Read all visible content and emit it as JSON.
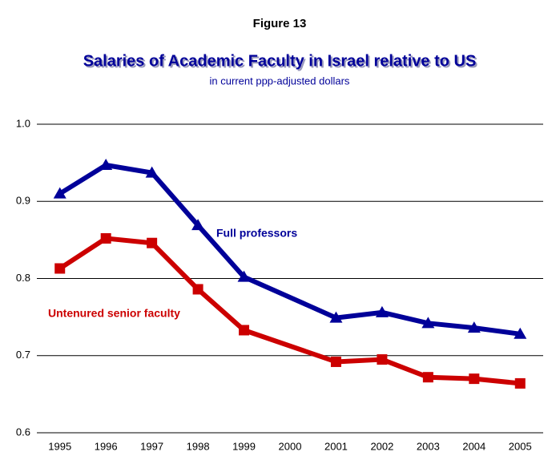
{
  "chart_data": {
    "type": "line",
    "figure_label": "Figure 13",
    "title": "Salaries of Academic Faculty in Israel relative to US",
    "subtitle": "in current ppp-adjusted dollars",
    "x": [
      1995,
      1996,
      1997,
      1998,
      1999,
      2001,
      2002,
      2003,
      2004,
      2005
    ],
    "xlim": [
      1994.5,
      2005.5
    ],
    "xticks": [
      1995,
      1996,
      1997,
      1998,
      1999,
      2000,
      2001,
      2002,
      2003,
      2004,
      2005
    ],
    "ylim": [
      0.6,
      1.0
    ],
    "yticks": [
      0.6,
      0.7,
      0.8,
      0.9,
      {
        "value": 1.0,
        "label": "1.0"
      }
    ],
    "grid": true,
    "series": [
      {
        "name": "Full professors",
        "color": "#000099",
        "marker": "triangle",
        "values": [
          0.91,
          0.947,
          0.937,
          0.869,
          0.802,
          0.749,
          0.756,
          0.742,
          0.736,
          0.728
        ]
      },
      {
        "name": "Untenured senior faculty",
        "color": "#cc0000",
        "marker": "square",
        "values": [
          0.813,
          0.852,
          0.846,
          0.786,
          0.733,
          0.692,
          0.695,
          0.672,
          0.67,
          0.664
        ]
      }
    ]
  }
}
